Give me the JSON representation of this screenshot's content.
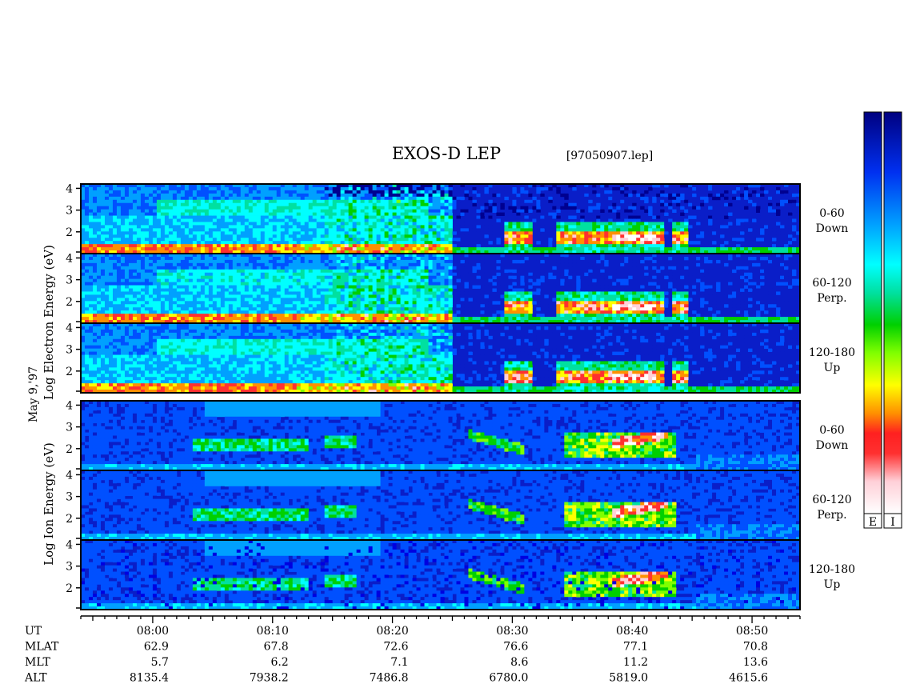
{
  "title": "EXOS-D LEP",
  "filename": "[97050907.lep]",
  "date_label": "May  9,'97",
  "colors": {
    "scale": [
      "#ffffff",
      "#ffd0d8",
      "#ff3030",
      "#ff9000",
      "#ffff00",
      "#80ff00",
      "#00d000",
      "#00e0a0",
      "#00ffff",
      "#00a0ff",
      "#0050ff",
      "#0000e0",
      "#000090"
    ],
    "background_panel": "#0a1ec8"
  },
  "colorbars": {
    "electron_label": "E",
    "ion_label": "I"
  },
  "chart_data": {
    "type": "heatmap",
    "x_axis": {
      "label": "UT",
      "range": [
        "07:54",
        "08:54"
      ],
      "major_ticks": [
        "08:00",
        "08:10",
        "08:20",
        "08:30",
        "08:40",
        "08:50"
      ]
    },
    "y_axis": {
      "scale": "log",
      "range": [
        1,
        4.2
      ],
      "ticks": [
        "2",
        "3",
        "4"
      ]
    },
    "groups": [
      {
        "name": "electron",
        "ylabel": "Log Electron Energy (eV)",
        "panels": [
          {
            "pitch_angle": "0-60",
            "direction": "Down"
          },
          {
            "pitch_angle": "60-120",
            "direction": "Perp."
          },
          {
            "pitch_angle": "120-180",
            "direction": "Up"
          }
        ]
      },
      {
        "name": "ion",
        "ylabel": "Log Ion Energy (eV)",
        "panels": [
          {
            "pitch_angle": "0-60",
            "direction": "Down"
          },
          {
            "pitch_angle": "60-120",
            "direction": "Perp."
          },
          {
            "pitch_angle": "120-180",
            "direction": "Up"
          }
        ]
      }
    ],
    "ephemeris": {
      "rows": [
        {
          "label": "UT",
          "values": [
            "08:00",
            "08:10",
            "08:20",
            "08:30",
            "08:40",
            "08:50"
          ]
        },
        {
          "label": "MLAT",
          "values": [
            "62.9",
            "67.8",
            "72.6",
            "76.6",
            "77.1",
            "70.8"
          ]
        },
        {
          "label": "MLT",
          "values": [
            "5.7",
            "6.2",
            "7.1",
            "8.6",
            "11.2",
            "13.6"
          ]
        },
        {
          "label": "ALT",
          "values": [
            "8135.4",
            "7938.2",
            "7486.8",
            "6780.0",
            "5819.0",
            "4615.6"
          ]
        }
      ]
    }
  }
}
